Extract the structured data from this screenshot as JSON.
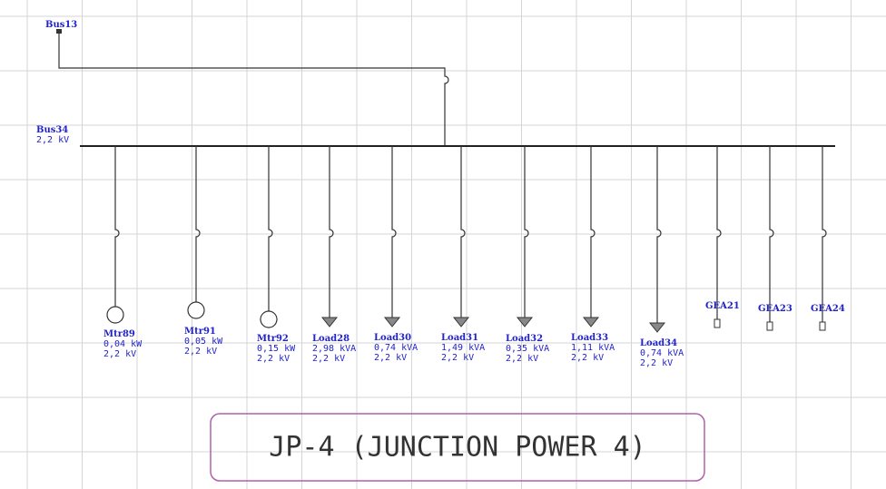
{
  "buses": [
    {
      "name": "Bus13"
    },
    {
      "name": "Bus34",
      "voltage": "2,2 kV"
    }
  ],
  "motors": [
    {
      "name": "Mtr89",
      "rating": "0,04 kW",
      "voltage": "2,2 kV"
    },
    {
      "name": "Mtr91",
      "rating": "0,05 kW",
      "voltage": "2,2 kV"
    },
    {
      "name": "Mtr92",
      "rating": "0,15 kW",
      "voltage": "2,2 kV"
    }
  ],
  "loads": [
    {
      "name": "Load28",
      "rating": "2,98 kVA",
      "voltage": "2,2 kV"
    },
    {
      "name": "Load30",
      "rating": "0,74 kVA",
      "voltage": "2,2 kV"
    },
    {
      "name": "Load31",
      "rating": "1,49 kVA",
      "voltage": "2,2 kV"
    },
    {
      "name": "Load32",
      "rating": "0,35 kVA",
      "voltage": "2,2 kV"
    },
    {
      "name": "Load33",
      "rating": "1,11 kVA",
      "voltage": "2,2 kV"
    },
    {
      "name": "Load34",
      "rating": "0,74 kVA",
      "voltage": "2,2 kV"
    }
  ],
  "generators": [
    {
      "name": "GEA21"
    },
    {
      "name": "GEA23"
    },
    {
      "name": "GEA24"
    }
  ],
  "title": "JP-4 (JUNCTION POWER 4)"
}
